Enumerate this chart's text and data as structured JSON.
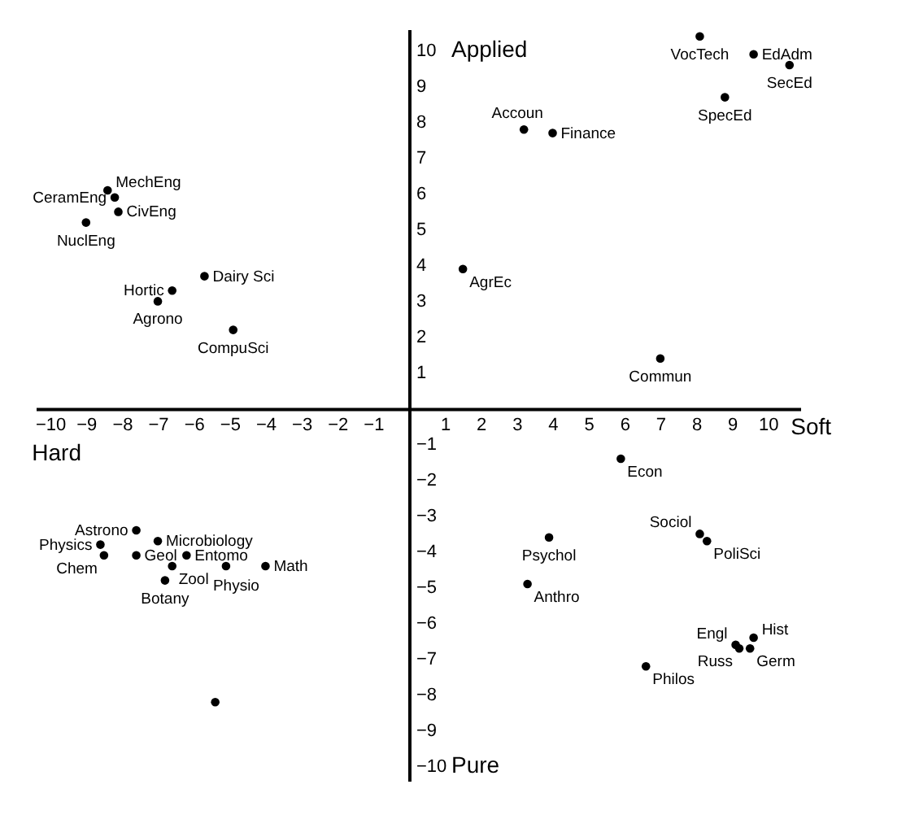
{
  "chart_data": {
    "type": "scatter",
    "marker": "circle",
    "xlim": [
      -10.4,
      10.9
    ],
    "ylim": [
      -10.4,
      10.6
    ],
    "xticks": [
      -10,
      -9,
      -8,
      -7,
      -6,
      -5,
      -4,
      -3,
      -2,
      -1,
      1,
      2,
      3,
      4,
      5,
      6,
      7,
      8,
      9,
      10
    ],
    "yticks": [
      -10,
      -9,
      -8,
      -7,
      -6,
      -5,
      -4,
      -3,
      -2,
      -1,
      1,
      2,
      3,
      4,
      5,
      6,
      7,
      8,
      9,
      10
    ],
    "annotations": [
      "Applied",
      "Hard",
      "Soft",
      "Pure"
    ],
    "series": [
      {
        "color": "#000000",
        "x": [
          -8.4,
          -8.2,
          -8.1,
          -9.0,
          -5.7,
          -6.6,
          -7.0,
          -4.9,
          1.5,
          3.2,
          4.0,
          8.1,
          9.6,
          10.6,
          8.8,
          7.0,
          5.9,
          8.1,
          8.3,
          3.9,
          3.3,
          6.6,
          9.1,
          9.2,
          9.6,
          9.5,
          -7.6,
          -8.6,
          -8.5,
          -7.0,
          -7.6,
          -6.2,
          -6.6,
          -5.1,
          -6.8,
          -4.0,
          -5.4
        ],
        "values": [
          6.1,
          5.9,
          5.5,
          5.2,
          3.7,
          3.3,
          3.0,
          2.2,
          3.9,
          7.8,
          7.7,
          10.4,
          9.9,
          9.6,
          8.7,
          1.4,
          -1.4,
          -3.5,
          -3.7,
          -3.6,
          -4.9,
          -7.2,
          -6.6,
          -6.7,
          -6.4,
          -6.7,
          -3.4,
          -3.8,
          -4.1,
          -3.7,
          -4.1,
          -4.1,
          -4.4,
          -4.4,
          -4.8,
          -4.4,
          -8.2
        ],
        "value_labels": [
          "MechEng",
          "CeramEng",
          "CivEng",
          "NuclEng",
          "Dairy Sci",
          "Hortic",
          "Agrono",
          "CompuSci",
          "AgrEc",
          "Accoun",
          "Finance",
          "VocTech",
          "EdAdm",
          "SecEd",
          "SpecEd",
          "Commun",
          "Econ",
          "Sociol",
          "PoliSci",
          "Psychol",
          "Anthro",
          "Philos",
          "Engl",
          "Russ",
          "Hist",
          "Germ",
          "Astrono",
          "Physics",
          "Chem",
          "Microbiology",
          "Geol",
          "Entomo",
          "Zool",
          "Physio",
          "Botany",
          "Math",
          null
        ]
      }
    ]
  }
}
